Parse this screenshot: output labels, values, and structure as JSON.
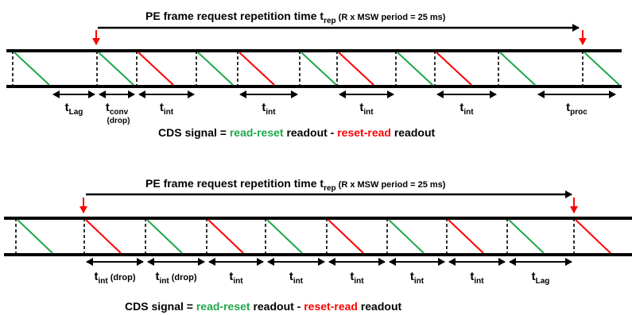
{
  "colors": {
    "green": "#1fa84a",
    "red": "#ff0000",
    "black": "#000000"
  },
  "top_diagram": {
    "title": {
      "main": "PE frame request repetition time t",
      "sub": "rep",
      "paren": " (R x MSW period = 25 ms)"
    },
    "ramps": [
      "green",
      "green",
      "red",
      "green",
      "red",
      "green",
      "red",
      "green",
      "red",
      "green",
      "green"
    ],
    "intervals": [
      {
        "main": "t",
        "sub": "Lag",
        "note": ""
      },
      {
        "main": "t",
        "sub": "conv",
        "note": "(drop)"
      },
      {
        "main": "t",
        "sub": "int",
        "note": ""
      },
      {
        "main": "t",
        "sub": "int",
        "note": ""
      },
      {
        "main": "t",
        "sub": "int",
        "note": ""
      },
      {
        "main": "t",
        "sub": "int",
        "note": ""
      },
      {
        "main": "t",
        "sub": "proc",
        "note": ""
      }
    ],
    "cds": {
      "prefix": "CDS signal = ",
      "green_text": "read-reset",
      "mid": " readout - ",
      "red_text": "reset-read",
      "suffix": " readout"
    }
  },
  "bottom_diagram": {
    "title": {
      "main": "PE frame request repetition time t",
      "sub": "rep",
      "paren": " (R x MSW period = 25 ms)"
    },
    "ramps": [
      "green",
      "red",
      "green",
      "red",
      "green",
      "red",
      "green",
      "red",
      "green",
      "red"
    ],
    "intervals": [
      {
        "main": "t",
        "sub": "int",
        "extra": " (drop)"
      },
      {
        "main": "t",
        "sub": "int",
        "extra": " (drop)"
      },
      {
        "main": "t",
        "sub": "int",
        "extra": ""
      },
      {
        "main": "t",
        "sub": "int",
        "extra": ""
      },
      {
        "main": "t",
        "sub": "int",
        "extra": ""
      },
      {
        "main": "t",
        "sub": "int",
        "extra": ""
      },
      {
        "main": "t",
        "sub": "int",
        "extra": ""
      },
      {
        "main": "t",
        "sub": "Lag",
        "extra": ""
      }
    ],
    "cds": {
      "prefix": "CDS signal = ",
      "green_text": "read-reset",
      "mid": " readout - ",
      "red_text": "reset-read",
      "suffix": " readout"
    }
  }
}
